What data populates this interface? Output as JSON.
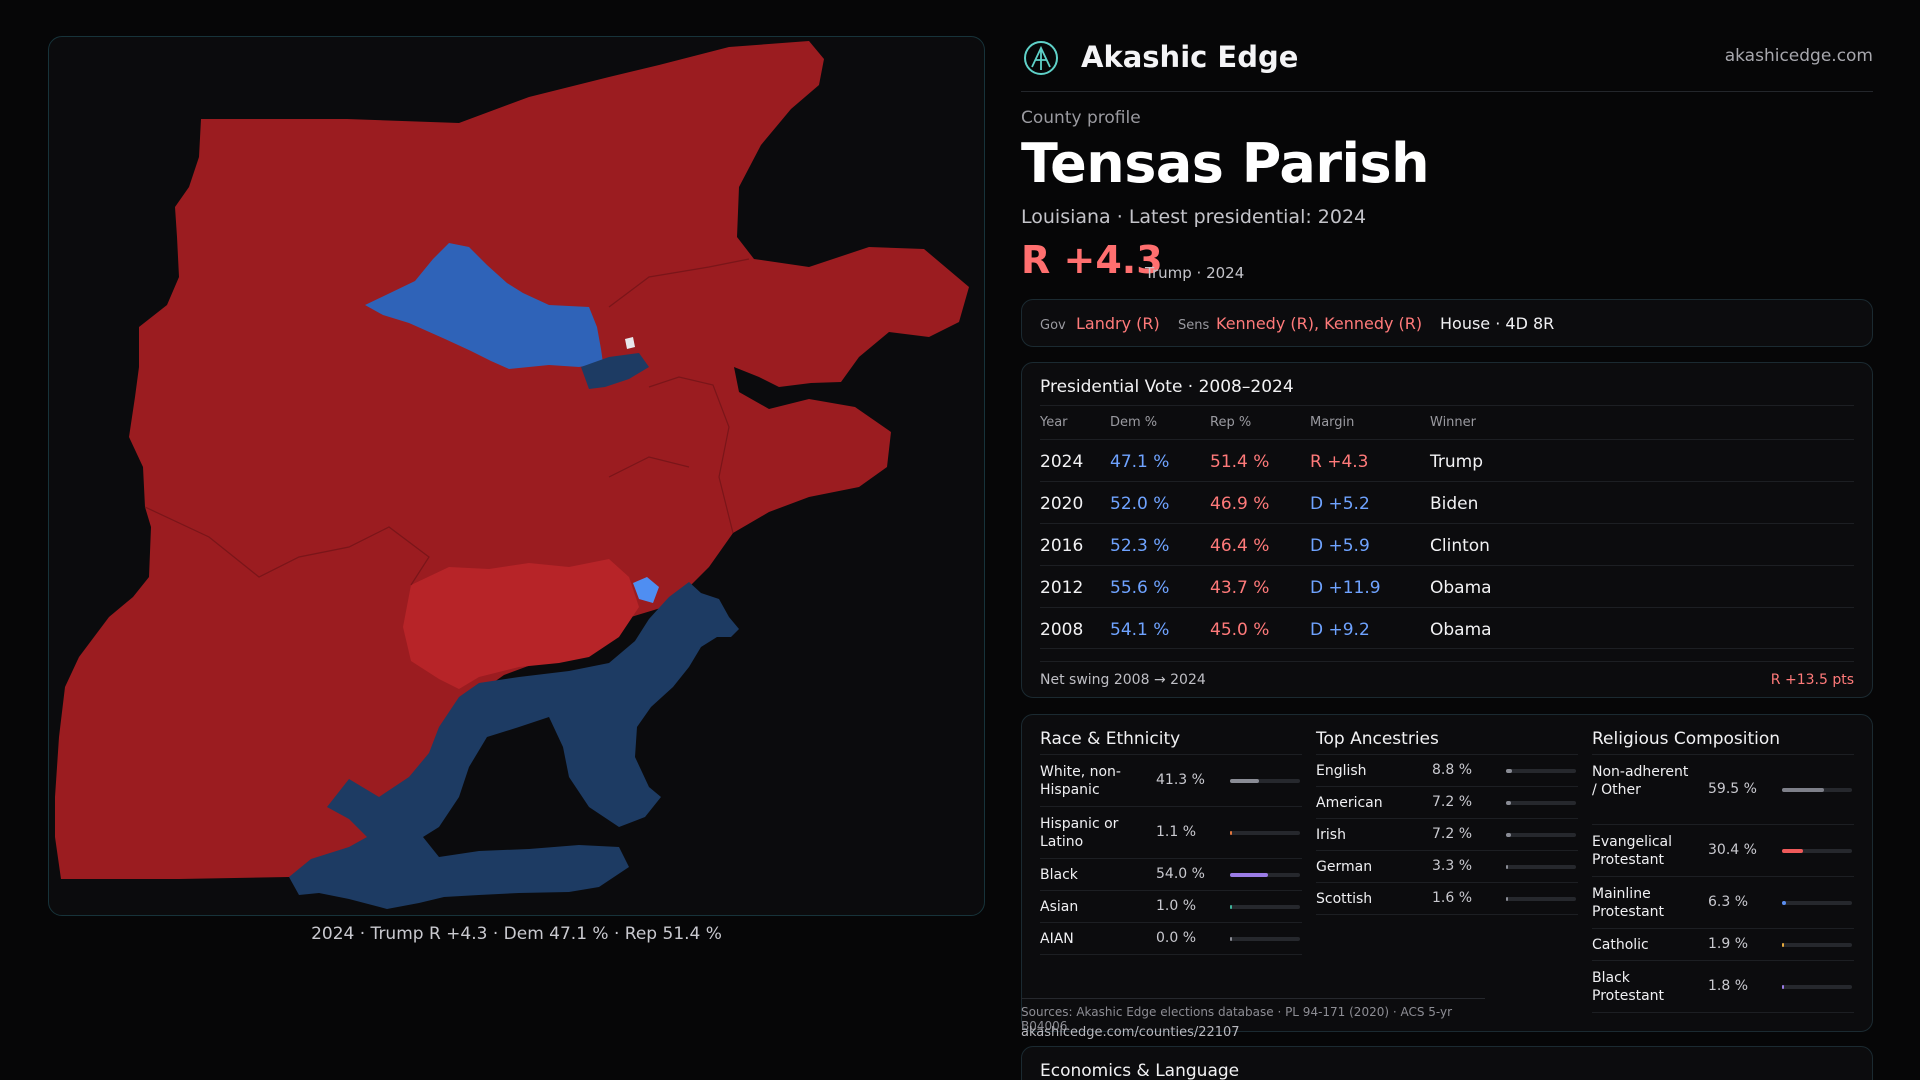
{
  "map": {
    "caption": "2024 · Trump R +4.3 · Dem 47.1 % · Rep 51.4 %",
    "colors": {
      "rep": "#9b1c20",
      "rep_light": "#b72428",
      "dem": "#2f63b8",
      "dem_dark": "#1d3b63",
      "dem_light": "#4f8ef2"
    }
  },
  "header": {
    "brand": "Akashic Edge",
    "site": "akashicedge.com",
    "logo": "akashic-logo-icon"
  },
  "profile": {
    "kicker": "County profile",
    "name": "Tensas Parish",
    "subline": "Louisiana · Latest presidential: 2024",
    "margin": "R +4.3",
    "margin_note": "Trump · 2024"
  },
  "officials": {
    "gov_label": "Gov",
    "gov": "Landry (R)",
    "sens_label": "Sens",
    "sens": "Kennedy (R), Kennedy (R)",
    "house": "House · 4D 8R"
  },
  "presidential": {
    "title": "Presidential Vote · 2008–2024",
    "headers": {
      "year": "Year",
      "dem": "Dem %",
      "rep": "Rep %",
      "margin": "Margin",
      "winner": "Winner"
    },
    "rows": [
      {
        "year": "2024",
        "dem": "47.1 %",
        "rep": "51.4 %",
        "margin": "R +4.3",
        "winner": "Trump"
      },
      {
        "year": "2020",
        "dem": "52.0 %",
        "rep": "46.9 %",
        "margin": "D +5.2",
        "winner": "Biden"
      },
      {
        "year": "2016",
        "dem": "52.3 %",
        "rep": "46.4 %",
        "margin": "D +5.9",
        "winner": "Clinton"
      },
      {
        "year": "2012",
        "dem": "55.6 %",
        "rep": "43.7 %",
        "margin": "D +11.9",
        "winner": "Obama"
      },
      {
        "year": "2008",
        "dem": "54.1 %",
        "rep": "45.0 %",
        "margin": "D +9.2",
        "winner": "Obama"
      }
    ],
    "swing_label": "Net swing 2008 → 2024",
    "swing_value": "R +13.5 pts"
  },
  "race": {
    "title": "Race & Ethnicity",
    "items": [
      {
        "label": "White, non-Hispanic",
        "pct": "41.3 %",
        "value": 41.3,
        "color": "#8a8c95"
      },
      {
        "label": "Hispanic or Latino",
        "pct": "1.1 %",
        "value": 1.1,
        "color": "#e0753d"
      },
      {
        "label": "Black",
        "pct": "54.0 %",
        "value": 54.0,
        "color": "#9b7ce6"
      },
      {
        "label": "Asian",
        "pct": "1.0 %",
        "value": 1.0,
        "color": "#3fb39a"
      },
      {
        "label": "AIAN",
        "pct": "0.0 %",
        "value": 0.0,
        "color": "#8a8c95"
      }
    ]
  },
  "ancestry": {
    "title": "Top Ancestries",
    "items": [
      {
        "label": "English",
        "pct": "8.8 %",
        "value": 8.8
      },
      {
        "label": "American",
        "pct": "7.2 %",
        "value": 7.2
      },
      {
        "label": "Irish",
        "pct": "7.2 %",
        "value": 7.2
      },
      {
        "label": "German",
        "pct": "3.3 %",
        "value": 3.3
      },
      {
        "label": "Scottish",
        "pct": "1.6 %",
        "value": 1.6
      }
    ]
  },
  "religion": {
    "title": "Religious Composition",
    "items": [
      {
        "label": "Non-adherent / Other",
        "pct": "59.5 %",
        "value": 59.5,
        "color": "#7e8089"
      },
      {
        "label": "Evangelical Protestant",
        "pct": "30.4 %",
        "value": 30.4,
        "color": "#ef5a5a"
      },
      {
        "label": "Mainline Protestant",
        "pct": "6.3 %",
        "value": 6.3,
        "color": "#5b8ef0"
      },
      {
        "label": "Catholic",
        "pct": "1.9 %",
        "value": 1.9,
        "color": "#e6a93d"
      },
      {
        "label": "Black Protestant",
        "pct": "1.8 %",
        "value": 1.8,
        "color": "#9b7ce6"
      }
    ]
  },
  "sources": {
    "text": "Sources: Akashic Edge elections database · PL 94-171 (2020) · ACS 5-yr B04006",
    "url": "akashicedge.com/counties/22107"
  },
  "economics": {
    "title": "Economics & Language"
  }
}
